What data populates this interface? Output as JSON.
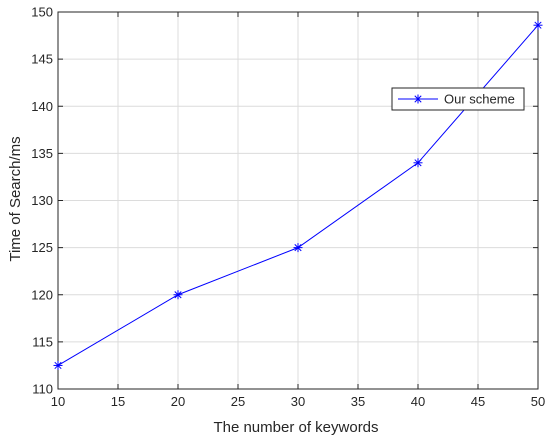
{
  "chart_data": {
    "type": "line",
    "title": "",
    "xlabel": "The number of keywords",
    "ylabel": "Time of Search/ms",
    "x": [
      10,
      20,
      30,
      40,
      50
    ],
    "series": [
      {
        "name": "Our scheme",
        "values": [
          112.5,
          120,
          125,
          134,
          148.6
        ],
        "color": "#0000ff",
        "marker": "asterisk"
      }
    ],
    "xlim": [
      10,
      50
    ],
    "ylim": [
      110,
      150
    ],
    "xticks": [
      10,
      15,
      20,
      25,
      30,
      35,
      40,
      45,
      50
    ],
    "yticks": [
      110,
      115,
      120,
      125,
      130,
      135,
      140,
      145,
      150
    ],
    "grid": true,
    "legend_position": "upper-right"
  }
}
